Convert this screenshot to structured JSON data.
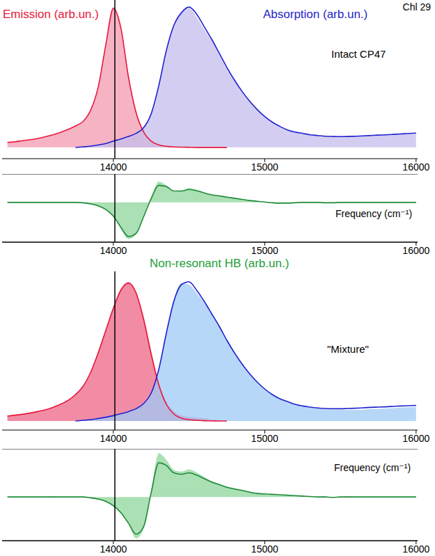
{
  "chart_data": [
    {
      "type": "line",
      "title": "Chl 29",
      "annotations": [
        {
          "text": "Emission (arb.un.)",
          "color": "#e8183c"
        },
        {
          "text": "Absorption (arb.un.)",
          "color": "#2626c8"
        },
        {
          "text": "Intact CP47",
          "color": "#000000"
        }
      ],
      "x": [
        13300,
        13350,
        13400,
        13450,
        13500,
        13550,
        13600,
        13650,
        13700,
        13750,
        13800,
        13850,
        13900,
        13950,
        14000,
        14050,
        14100,
        14150,
        14200,
        14250,
        14300,
        14350,
        14400,
        14450,
        14500,
        14550,
        14600,
        14650,
        14700,
        14750,
        14800,
        14850,
        14900,
        14950,
        15000,
        15050,
        15100,
        15150,
        15200,
        15250,
        15300,
        15350,
        15400,
        15450,
        15500,
        15550,
        15600,
        15650,
        15700,
        15750,
        15800,
        15850,
        15900,
        15950,
        16000
      ],
      "xlim": [
        13265,
        16010
      ],
      "xticks": [
        14000,
        15000,
        16000
      ],
      "ylim": [
        -0.08,
        1.05
      ],
      "tick_labels": "x",
      "vline_x": 14010,
      "series": [
        {
          "type": "area",
          "color": "#f19ab0",
          "values": [
            0.04,
            0.045,
            0.05,
            0.055,
            0.065,
            0.075,
            0.09,
            0.105,
            0.125,
            0.15,
            0.18,
            0.26,
            0.42,
            0.72,
            1.0,
            0.86,
            0.52,
            0.26,
            0.12,
            0.05,
            0.02,
            0.01,
            0.005,
            0.002,
            0,
            0,
            0,
            0,
            0,
            0,
            null,
            null,
            null,
            null,
            null,
            null,
            null,
            null,
            null,
            null,
            null,
            null,
            null,
            null,
            null,
            null,
            null,
            null,
            null,
            null,
            null,
            null,
            null,
            null,
            null
          ]
        },
        {
          "type": "area",
          "color": "#c4bdec",
          "values": [
            null,
            null,
            null,
            null,
            null,
            null,
            null,
            null,
            null,
            0,
            0.005,
            0.01,
            0.02,
            0.03,
            0.05,
            0.065,
            0.08,
            0.1,
            0.15,
            0.25,
            0.45,
            0.7,
            0.88,
            0.97,
            0.99,
            0.93,
            0.84,
            0.76,
            0.66,
            0.56,
            0.48,
            0.4,
            0.33,
            0.27,
            0.22,
            0.18,
            0.15,
            0.13,
            0.115,
            0.1,
            0.09,
            0.085,
            0.08,
            0.08,
            0.08,
            0.08,
            0.08,
            0.085,
            0.085,
            0.09,
            0.09,
            0.095,
            0.1,
            0.1,
            0.105
          ]
        },
        {
          "type": "line",
          "color": "#e8173c",
          "values": [
            0.035,
            0.04,
            0.048,
            0.055,
            0.064,
            0.076,
            0.09,
            0.107,
            0.128,
            0.153,
            0.185,
            0.265,
            0.43,
            0.73,
            0.99,
            0.85,
            0.5,
            0.25,
            0.11,
            0.045,
            0.018,
            0.008,
            0.004,
            0.002,
            0.001,
            0,
            0,
            0,
            0,
            0,
            null,
            null,
            null,
            null,
            null,
            null,
            null,
            null,
            null,
            null,
            null,
            null,
            null,
            null,
            null,
            null,
            null,
            null,
            null,
            null,
            null,
            null,
            null,
            null,
            null
          ]
        },
        {
          "type": "line",
          "color": "#2020d0",
          "values": [
            null,
            null,
            null,
            null,
            null,
            null,
            null,
            null,
            null,
            0,
            0.004,
            0.009,
            0.018,
            0.028,
            0.045,
            0.06,
            0.078,
            0.1,
            0.14,
            0.24,
            0.44,
            0.69,
            0.87,
            0.96,
            1.0,
            0.95,
            0.86,
            0.77,
            0.67,
            0.57,
            0.48,
            0.4,
            0.33,
            0.27,
            0.22,
            0.18,
            0.15,
            0.125,
            0.11,
            0.1,
            0.09,
            0.085,
            0.08,
            0.078,
            0.077,
            0.078,
            0.08,
            0.082,
            0.085,
            0.088,
            0.09,
            0.093,
            0.096,
            0.1,
            0.102
          ]
        }
      ]
    },
    {
      "type": "line",
      "annotations": [
        {
          "text": "Frequency (cm⁻¹)",
          "color": "#000000"
        },
        {
          "text": "Non-resonant HB (arb.un.)",
          "color": "#1e9e3a"
        }
      ],
      "x": [
        13300,
        13350,
        13400,
        13450,
        13500,
        13550,
        13600,
        13650,
        13700,
        13750,
        13800,
        13850,
        13900,
        13950,
        14000,
        14050,
        14100,
        14150,
        14200,
        14250,
        14300,
        14350,
        14400,
        14450,
        14500,
        14550,
        14600,
        14650,
        14700,
        14750,
        14800,
        14850,
        14900,
        14950,
        15000,
        15050,
        15100,
        15150,
        15200,
        15250,
        15300,
        15350,
        15400,
        15450,
        15500,
        15550,
        15600,
        15650,
        15700,
        15750,
        15800,
        15850,
        15900,
        15950,
        16000
      ],
      "xlim": [
        13265,
        16010
      ],
      "xticks": [
        14000,
        15000,
        16000
      ],
      "ylim": [
        -1.05,
        0.75
      ],
      "yticks": [
        0
      ],
      "grid": true,
      "tick_labels": "x",
      "vline_x": 14010,
      "series": [
        {
          "type": "area",
          "color": "#8fd69b",
          "values": [
            0,
            0.01,
            0,
            -0.01,
            0,
            0.01,
            0,
            0,
            -0.01,
            0,
            -0.02,
            -0.05,
            -0.1,
            -0.2,
            -0.38,
            -0.7,
            -0.97,
            -0.85,
            -0.35,
            0.15,
            0.55,
            0.45,
            0.28,
            0.3,
            0.38,
            0.33,
            0.26,
            0.2,
            0.18,
            0.15,
            0.12,
            0.08,
            0.05,
            0.02,
            0,
            -0.02,
            -0.03,
            -0.02,
            -0.01,
            0,
            0.01,
            0,
            -0.01,
            0,
            0.01,
            0,
            -0.01,
            0,
            0.01,
            0,
            -0.01,
            0,
            0,
            0.01,
            0
          ]
        },
        {
          "type": "line",
          "color": "#1f8a3a",
          "values": [
            0,
            0,
            0,
            0,
            0,
            0,
            0,
            0,
            0,
            0,
            -0.01,
            -0.04,
            -0.09,
            -0.19,
            -0.36,
            -0.66,
            -0.9,
            -0.82,
            -0.38,
            0.1,
            0.45,
            0.42,
            0.3,
            0.3,
            0.34,
            0.31,
            0.25,
            0.2,
            0.17,
            0.14,
            0.11,
            0.08,
            0.05,
            0.03,
            0.01,
            -0.01,
            -0.02,
            -0.02,
            -0.01,
            0,
            0,
            0,
            -0.01,
            -0.01,
            0,
            0,
            0,
            0,
            0,
            0,
            0,
            0,
            0,
            0,
            0
          ]
        }
      ]
    },
    {
      "type": "line",
      "annotations": [
        {
          "text": "\"Mixture\"",
          "color": "#000000"
        }
      ],
      "x": [
        13300,
        13350,
        13400,
        13450,
        13500,
        13550,
        13600,
        13650,
        13700,
        13750,
        13800,
        13850,
        13900,
        13950,
        14000,
        14050,
        14100,
        14150,
        14200,
        14250,
        14300,
        14350,
        14400,
        14450,
        14500,
        14550,
        14600,
        14650,
        14700,
        14750,
        14800,
        14850,
        14900,
        14950,
        15000,
        15050,
        15100,
        15150,
        15200,
        15250,
        15300,
        15350,
        15400,
        15450,
        15500,
        15550,
        15600,
        15650,
        15700,
        15750,
        15800,
        15850,
        15900,
        15950,
        16000
      ],
      "xlim": [
        13265,
        16010
      ],
      "xticks": [
        14000,
        15000,
        16000
      ],
      "ylim": [
        -0.065,
        1.075
      ],
      "tick_labels": "x",
      "vline_x": 14010,
      "series": [
        {
          "type": "area",
          "color": "#ec6685",
          "values": [
            0.04,
            0.045,
            0.05,
            0.06,
            0.07,
            0.08,
            0.1,
            0.12,
            0.15,
            0.19,
            0.25,
            0.35,
            0.5,
            0.66,
            0.82,
            0.95,
            1.0,
            0.93,
            0.75,
            0.5,
            0.28,
            0.14,
            0.07,
            0.04,
            0.03,
            0.025,
            0.02,
            0.01,
            0.005,
            0,
            null,
            null,
            null,
            null,
            null,
            null,
            null,
            null,
            null,
            null,
            null,
            null,
            null,
            null,
            null,
            null,
            null,
            null,
            null,
            null,
            null,
            null,
            null,
            null,
            null
          ]
        },
        {
          "type": "area",
          "color": "#9fc9f5",
          "values": [
            null,
            null,
            null,
            null,
            null,
            null,
            null,
            null,
            null,
            0,
            0.006,
            0.012,
            0.02,
            0.03,
            0.04,
            0.055,
            0.07,
            0.09,
            0.13,
            0.2,
            0.38,
            0.65,
            0.88,
            0.99,
            0.98,
            0.92,
            0.85,
            0.77,
            0.68,
            0.58,
            0.49,
            0.41,
            0.34,
            0.28,
            0.23,
            0.19,
            0.16,
            0.14,
            0.12,
            0.105,
            0.095,
            0.09,
            0.085,
            0.08,
            0.08,
            0.08,
            0.08,
            0.082,
            0.085,
            0.088,
            0.09,
            0.093,
            0.096,
            0.1,
            0.1
          ]
        },
        {
          "type": "line",
          "color": "#e8173c",
          "values": [
            0.035,
            0.042,
            0.048,
            0.057,
            0.068,
            0.08,
            0.098,
            0.12,
            0.148,
            0.19,
            0.25,
            0.35,
            0.49,
            0.65,
            0.81,
            0.94,
            0.99,
            0.92,
            0.73,
            0.48,
            0.26,
            0.12,
            0.05,
            0.02,
            0.01,
            0.005,
            0.002,
            0.001,
            0,
            0,
            null,
            null,
            null,
            null,
            null,
            null,
            null,
            null,
            null,
            null,
            null,
            null,
            null,
            null,
            null,
            null,
            null,
            null,
            null,
            null,
            null,
            null,
            null,
            null,
            null
          ]
        },
        {
          "type": "line",
          "color": "#2020d0",
          "values": [
            null,
            null,
            null,
            null,
            null,
            null,
            null,
            null,
            null,
            0,
            0.005,
            0.01,
            0.018,
            0.027,
            0.038,
            0.052,
            0.068,
            0.088,
            0.125,
            0.2,
            0.37,
            0.63,
            0.86,
            0.98,
            1.0,
            0.94,
            0.86,
            0.77,
            0.68,
            0.58,
            0.49,
            0.41,
            0.34,
            0.28,
            0.23,
            0.19,
            0.16,
            0.14,
            0.12,
            0.108,
            0.1,
            0.094,
            0.09,
            0.088,
            0.088,
            0.09,
            0.092,
            0.095,
            0.098,
            0.1,
            0.102,
            0.105,
            0.108,
            0.11,
            0.112
          ]
        }
      ]
    },
    {
      "type": "line",
      "annotations": [
        {
          "text": "Frequency (cm⁻¹)",
          "color": "#000000"
        }
      ],
      "x": [
        13300,
        13350,
        13400,
        13450,
        13500,
        13550,
        13600,
        13650,
        13700,
        13750,
        13800,
        13850,
        13900,
        13950,
        14000,
        14050,
        14100,
        14150,
        14200,
        14250,
        14300,
        14350,
        14400,
        14450,
        14500,
        14550,
        14600,
        14650,
        14700,
        14750,
        14800,
        14850,
        14900,
        14950,
        15000,
        15050,
        15100,
        15150,
        15200,
        15250,
        15300,
        15350,
        15400,
        15450,
        15500,
        15550,
        15600,
        15650,
        15700,
        15750,
        15800,
        15850,
        15900,
        15950,
        16000
      ],
      "xlim": [
        13265,
        16010
      ],
      "xticks": [
        14000,
        15000,
        16000
      ],
      "ylim": [
        -1.0,
        1.1
      ],
      "yticks": [
        0
      ],
      "grid": true,
      "tick_labels": "x",
      "vline_x": 14010,
      "series": [
        {
          "type": "area",
          "color": "#8fd69b",
          "values": [
            0,
            0,
            0.01,
            0,
            -0.01,
            0,
            0.01,
            0,
            0,
            -0.01,
            -0.01,
            -0.03,
            -0.06,
            -0.11,
            -0.22,
            -0.38,
            -0.62,
            -0.95,
            -0.72,
            0.15,
            1.0,
            0.85,
            0.62,
            0.58,
            0.63,
            0.56,
            0.46,
            0.36,
            0.3,
            0.24,
            0.2,
            0.16,
            0.12,
            0.09,
            0.07,
            0.05,
            0.04,
            0.05,
            0.03,
            0.02,
            0.01,
            0,
            0.01,
            -0.01,
            0,
            0.01,
            0,
            -0.01,
            0.01,
            0,
            0,
            -0.01,
            0.01,
            0,
            0
          ]
        },
        {
          "type": "line",
          "color": "#1f8a3a",
          "values": [
            0,
            0,
            0,
            0,
            0,
            0,
            0,
            0,
            0,
            0,
            0,
            -0.02,
            -0.05,
            -0.1,
            -0.2,
            -0.36,
            -0.6,
            -0.85,
            -0.68,
            0.1,
            0.78,
            0.72,
            0.55,
            0.52,
            0.55,
            0.5,
            0.42,
            0.34,
            0.28,
            0.22,
            0.18,
            0.15,
            0.11,
            0.08,
            0.07,
            0.06,
            0.05,
            0.04,
            0.03,
            0.02,
            0.01,
            0,
            0,
            -0.01,
            0,
            0,
            0,
            0,
            0,
            0,
            0,
            0,
            0,
            0,
            0
          ]
        }
      ]
    }
  ]
}
